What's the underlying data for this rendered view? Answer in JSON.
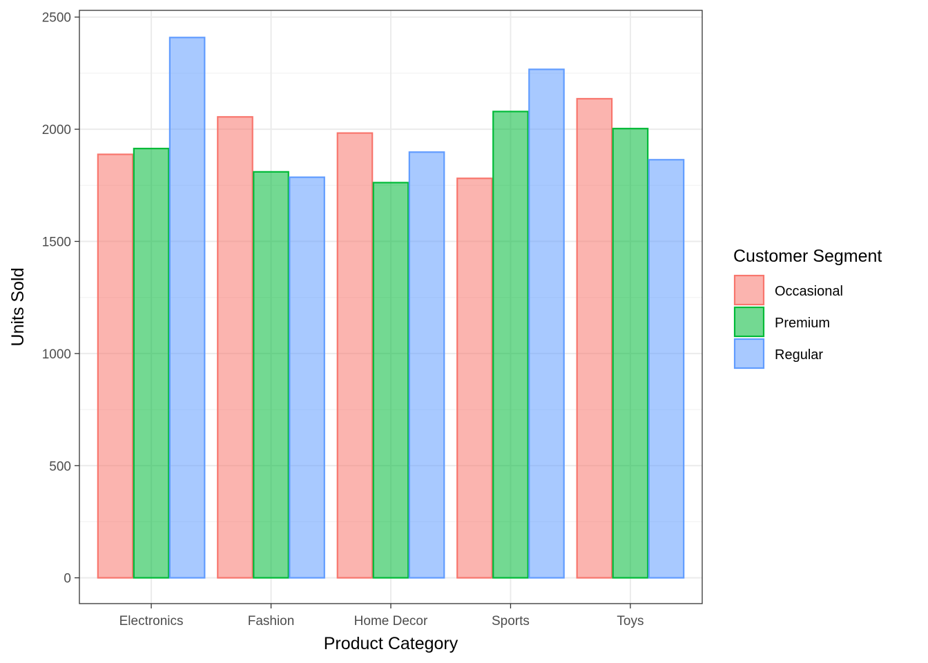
{
  "chart_data": {
    "type": "bar",
    "xlabel": "Product Category",
    "ylabel": "Units Sold",
    "categories": [
      "Electronics",
      "Fashion",
      "Home Decor",
      "Sports",
      "Toys"
    ],
    "series": [
      {
        "name": "Occasional",
        "values": [
          1888,
          2055,
          1983,
          1781,
          2136
        ],
        "fill": "#F8766D",
        "stroke": "#F8766D"
      },
      {
        "name": "Premium",
        "values": [
          1914,
          1810,
          1762,
          2079,
          2003
        ],
        "fill": "#00BA38",
        "stroke": "#00BA38"
      },
      {
        "name": "Regular",
        "values": [
          2409,
          1786,
          1898,
          2267,
          1864
        ],
        "fill": "#619CFF",
        "stroke": "#619CFF"
      }
    ],
    "ylim": [
      -115,
      2530
    ],
    "yticks": [
      0,
      500,
      1000,
      1500,
      2000,
      2500
    ],
    "ytick_labels": [
      "0",
      "500",
      "1000",
      "1500",
      "2000",
      "2500"
    ],
    "grid": true,
    "bar_fill_opacity": 0.55,
    "legend": {
      "title": "Customer Segment",
      "placement": "right"
    },
    "colors": {
      "panel_border": "#333333",
      "grid_major": "#ebebeb",
      "grid_minor": "#f2f2f2",
      "tick": "#333333"
    }
  }
}
